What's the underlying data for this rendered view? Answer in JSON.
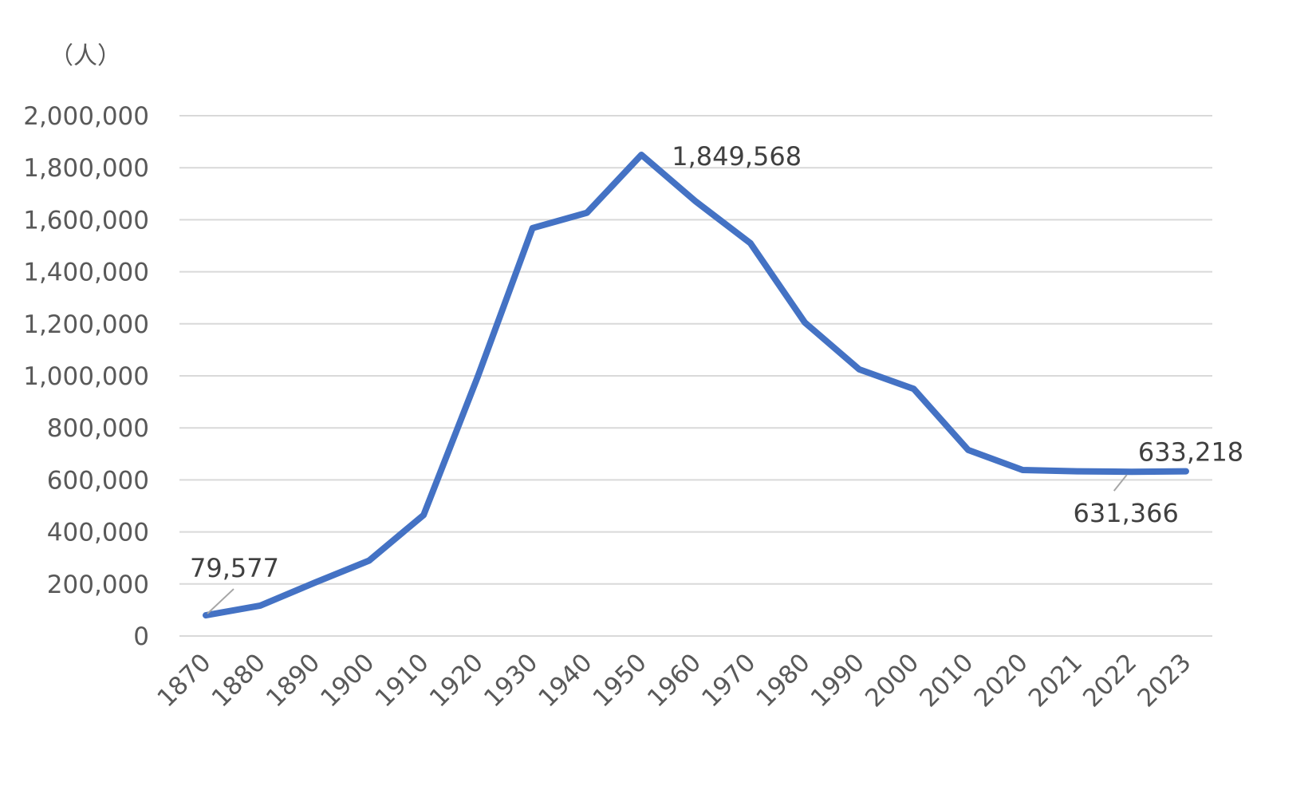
{
  "chart_data": {
    "type": "line",
    "y_unit_label": "（人）",
    "categories": [
      "1870",
      "1880",
      "1890",
      "1900",
      "1910",
      "1920",
      "1930",
      "1940",
      "1950",
      "1960",
      "1970",
      "1980",
      "1990",
      "2000",
      "2010",
      "2020",
      "2021",
      "2022",
      "2023"
    ],
    "series": [
      {
        "values": [
          79577,
          117000,
          205000,
          290000,
          465000,
          1000000,
          1568000,
          1627000,
          1849568,
          1670000,
          1510000,
          1205000,
          1025000,
          950000,
          715000,
          638000,
          633000,
          631366,
          633218
        ],
        "color": "#4472C4"
      }
    ],
    "ylim": [
      0,
      2000000
    ],
    "y_ticks": [
      "0",
      "200,000",
      "400,000",
      "600,000",
      "800,000",
      "1,000,000",
      "1,200,000",
      "1,400,000",
      "1,600,000",
      "1,800,000",
      "2,000,000"
    ],
    "grid": true,
    "data_labels": [
      {
        "category": "1870",
        "text": "79,577",
        "leader": true
      },
      {
        "category": "1950",
        "text": "1,849,568",
        "leader": false
      },
      {
        "category": "2022",
        "text": "631,366",
        "leader": true
      },
      {
        "category": "2023",
        "text": "633,218",
        "leader": false
      }
    ],
    "colors": {
      "line": "#4472C4",
      "grid": "#D9D9D9",
      "tick_text": "#595959",
      "label_text": "#404040",
      "leader": "#A6A6A6"
    }
  }
}
